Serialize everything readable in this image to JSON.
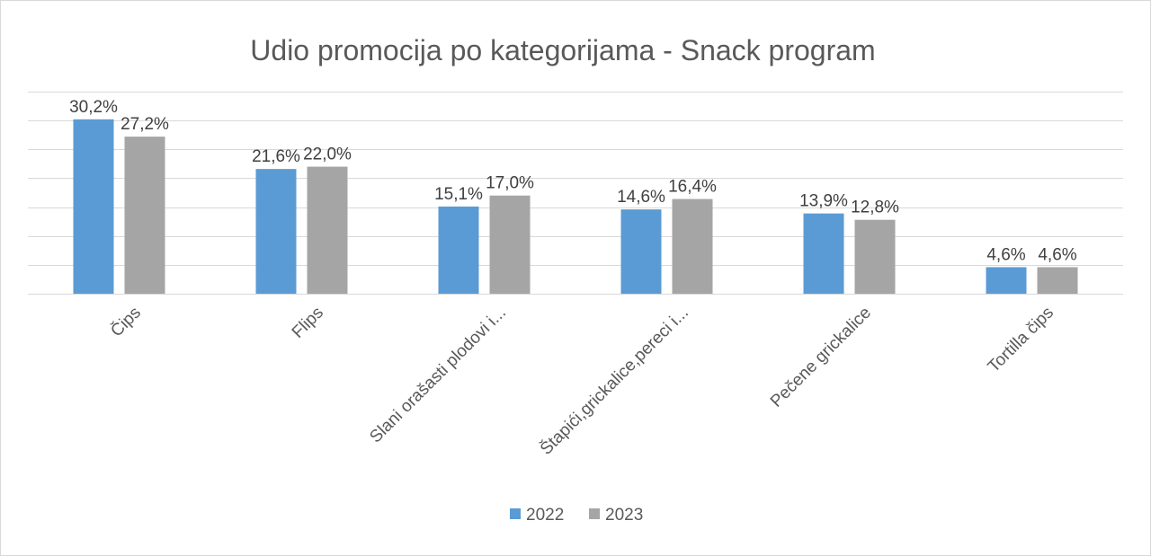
{
  "chart_data": {
    "type": "bar",
    "title": "Udio promocija po kategorijama - Snack program",
    "categories": [
      "Čips",
      "Flips",
      "Slani orašasti plodovi i...",
      "Štapići,grickalice,pereci i...",
      "Pečene grickalice",
      "Tortilla čips"
    ],
    "series": [
      {
        "name": "2022",
        "values": [
          30.2,
          21.6,
          15.1,
          14.6,
          13.9,
          4.6
        ],
        "labels": [
          "30,2%",
          "21,6%",
          "15,1%",
          "14,6%",
          "13,9%",
          "4,6%"
        ],
        "color": "#5b9bd5"
      },
      {
        "name": "2023",
        "values": [
          27.2,
          22.0,
          17.0,
          16.4,
          12.8,
          4.6
        ],
        "labels": [
          "27,2%",
          "22,0%",
          "17,0%",
          "16,4%",
          "12,8%",
          "4,6%"
        ],
        "color": "#a5a5a5"
      }
    ],
    "ylim": [
      0,
      35
    ],
    "grid": true,
    "yaxis_labels_visible": false,
    "legend_position": "bottom",
    "xlabel": "",
    "ylabel": ""
  }
}
